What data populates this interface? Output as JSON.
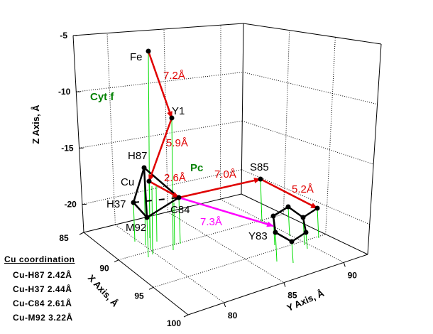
{
  "chart_data": {
    "type": "scatter3d",
    "title": "",
    "xlabel": "X Axis, Å",
    "ylabel": "Y Axis, Å",
    "zlabel": "Z Axis, Å",
    "xlim": [
      85,
      100
    ],
    "ylim": [
      77,
      92
    ],
    "zlim": [
      -22.5,
      -5
    ],
    "xticks": [
      "85",
      "90",
      "95",
      "100"
    ],
    "yticks": [
      "80",
      "85",
      "90"
    ],
    "zticks": [
      "-5",
      "-10",
      "-15",
      "-20"
    ],
    "grid": true,
    "points": [
      {
        "label": "Fe"
      },
      {
        "label": "Y1"
      },
      {
        "label": "H87"
      },
      {
        "label": "Cu"
      },
      {
        "label": "H37"
      },
      {
        "label": "M92"
      },
      {
        "label": "C84"
      },
      {
        "label": "S85"
      },
      {
        "label": "Y83"
      }
    ],
    "electron_path": [
      {
        "from": "Fe",
        "to": "Y1",
        "distance": "7.2Å",
        "color": "#e00000"
      },
      {
        "from": "Y1",
        "to": "Cu",
        "distance": "5.9Å",
        "color": "#e00000"
      },
      {
        "from": "Cu",
        "to": "C84",
        "distance": "2.6Å",
        "color": "#e00000"
      },
      {
        "from": "C84",
        "to": "S85",
        "distance": "7.0Å",
        "color": "#e00000"
      },
      {
        "from": "S85",
        "to": "Y83-ring",
        "distance": "5.2Å",
        "color": "#e00000"
      },
      {
        "from": "C84",
        "to": "Y83",
        "distance": "7.3Å",
        "color": "#ff00ff"
      }
    ],
    "annotations": [
      {
        "text": "Cyt f",
        "color": "#008000"
      },
      {
        "text": "Pc",
        "color": "#008000"
      }
    ],
    "drop_line_color": "#00dd00"
  },
  "legend": {
    "title": "Cu coordination",
    "rows": [
      "Cu-H87 2.42Å",
      "Cu-H37 2.44Å",
      "Cu-C84 2.61Å",
      "Cu-M92 3.22Å"
    ]
  }
}
